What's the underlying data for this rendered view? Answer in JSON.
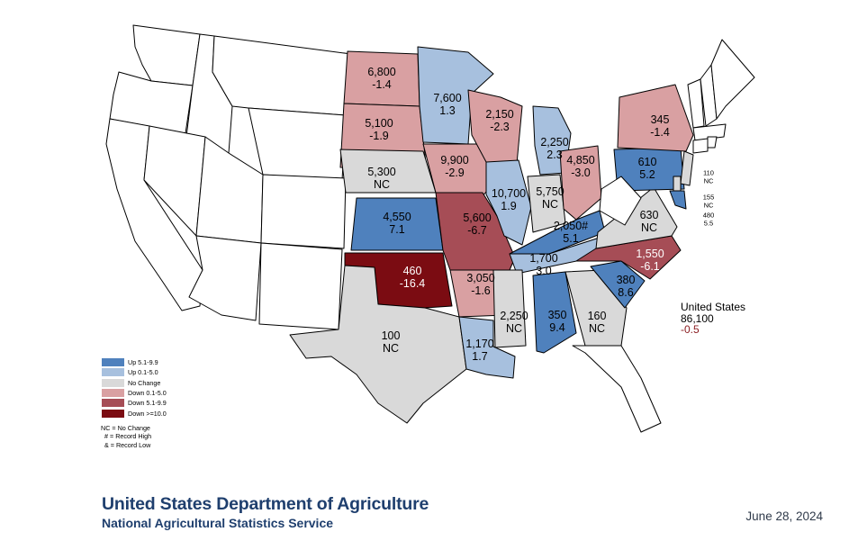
{
  "colors": {
    "up_5_1_9_9": "#4f81bd",
    "up_0_1_5_0": "#a7c0de",
    "no_change": "#d9d9d9",
    "down_0_1_5_0": "#d9a0a2",
    "down_5_1_9_9": "#a64d56",
    "down_ge_10": "#7b0c12",
    "unshaded": "#ffffff",
    "border": "#000000",
    "us_change": "#8b1e22",
    "agency_text": "#1f3f6e"
  },
  "states": [
    {
      "abbr": "ND",
      "value": "6,800",
      "change": "-1.4",
      "category": "down_0_1_5_0"
    },
    {
      "abbr": "MN",
      "value": "7,600",
      "change": "1.3",
      "category": "up_0_1_5_0"
    },
    {
      "abbr": "SD",
      "value": "5,100",
      "change": "-1.9",
      "category": "down_0_1_5_0"
    },
    {
      "abbr": "WI",
      "value": "2,150",
      "change": "-2.3",
      "category": "down_0_1_5_0"
    },
    {
      "abbr": "MI",
      "value": "2,250",
      "change": "2.3",
      "category": "up_0_1_5_0"
    },
    {
      "abbr": "NE",
      "value": "5,300",
      "change": "NC",
      "category": "no_change"
    },
    {
      "abbr": "IA",
      "value": "9,900",
      "change": "-2.9",
      "category": "down_0_1_5_0"
    },
    {
      "abbr": "IL",
      "value": "10,700",
      "change": "1.9",
      "category": "up_0_1_5_0"
    },
    {
      "abbr": "IN",
      "value": "5,750",
      "change": "NC",
      "category": "no_change"
    },
    {
      "abbr": "OH",
      "value": "4,850",
      "change": "-3.0",
      "category": "down_0_1_5_0"
    },
    {
      "abbr": "PA",
      "value": "610",
      "change": "5.2",
      "category": "up_5_1_9_9"
    },
    {
      "abbr": "NY",
      "value": "345",
      "change": "-1.4",
      "category": "down_0_1_5_0"
    },
    {
      "abbr": "KS",
      "value": "4,550",
      "change": "7.1",
      "category": "up_5_1_9_9"
    },
    {
      "abbr": "MO",
      "value": "5,600",
      "change": "-6.7",
      "category": "down_5_1_9_9"
    },
    {
      "abbr": "KY",
      "value": "2,050#",
      "change": "5.1",
      "category": "up_5_1_9_9"
    },
    {
      "abbr": "VA",
      "value": "630",
      "change": "NC",
      "category": "no_change"
    },
    {
      "abbr": "NC",
      "value": "1,550",
      "change": "-6.1",
      "category": "down_5_1_9_9"
    },
    {
      "abbr": "TN",
      "value": "1,700",
      "change": "3.0",
      "category": "up_0_1_5_0"
    },
    {
      "abbr": "OK",
      "value": "460",
      "change": "-16.4",
      "category": "down_ge_10"
    },
    {
      "abbr": "AR",
      "value": "3,050",
      "change": "-1.6",
      "category": "down_0_1_5_0"
    },
    {
      "abbr": "SC",
      "value": "380",
      "change": "8.6",
      "category": "up_5_1_9_9"
    },
    {
      "abbr": "MS",
      "value": "2,250",
      "change": "NC",
      "category": "no_change"
    },
    {
      "abbr": "AL",
      "value": "350",
      "change": "9.4",
      "category": "up_5_1_9_9"
    },
    {
      "abbr": "GA",
      "value": "160",
      "change": "NC",
      "category": "no_change"
    },
    {
      "abbr": "TX",
      "value": "100",
      "change": "NC",
      "category": "no_change"
    },
    {
      "abbr": "LA",
      "value": "1,170",
      "change": "1.7",
      "category": "up_0_1_5_0"
    },
    {
      "abbr": "NJ",
      "value": "110",
      "change": "NC",
      "category": "no_change"
    },
    {
      "abbr": "DE",
      "value": "155",
      "change": "NC",
      "category": "no_change"
    },
    {
      "abbr": "MD",
      "value": "480",
      "change": "5.5",
      "category": "up_5_1_9_9"
    }
  ],
  "legend": [
    {
      "label": "Up 5.1-9.9",
      "category": "up_5_1_9_9"
    },
    {
      "label": "Up 0.1-5.0",
      "category": "up_0_1_5_0"
    },
    {
      "label": "No Change",
      "category": "no_change"
    },
    {
      "label": "Down 0.1-5.0",
      "category": "down_0_1_5_0"
    },
    {
      "label": "Down 5.1-9.9",
      "category": "down_5_1_9_9"
    },
    {
      "label": "Down >=10.0",
      "category": "down_ge_10"
    }
  ],
  "notes": {
    "nc": "NC = No Change",
    "record_high": "# = Record High",
    "record_low": "& = Record Low"
  },
  "us_total": {
    "name": "United States",
    "value": "86,100",
    "change": "-0.5"
  },
  "agency": {
    "line1": "United States Department of Agriculture",
    "line2": "National Agricultural Statistics Service"
  },
  "date": "June 28, 2024"
}
